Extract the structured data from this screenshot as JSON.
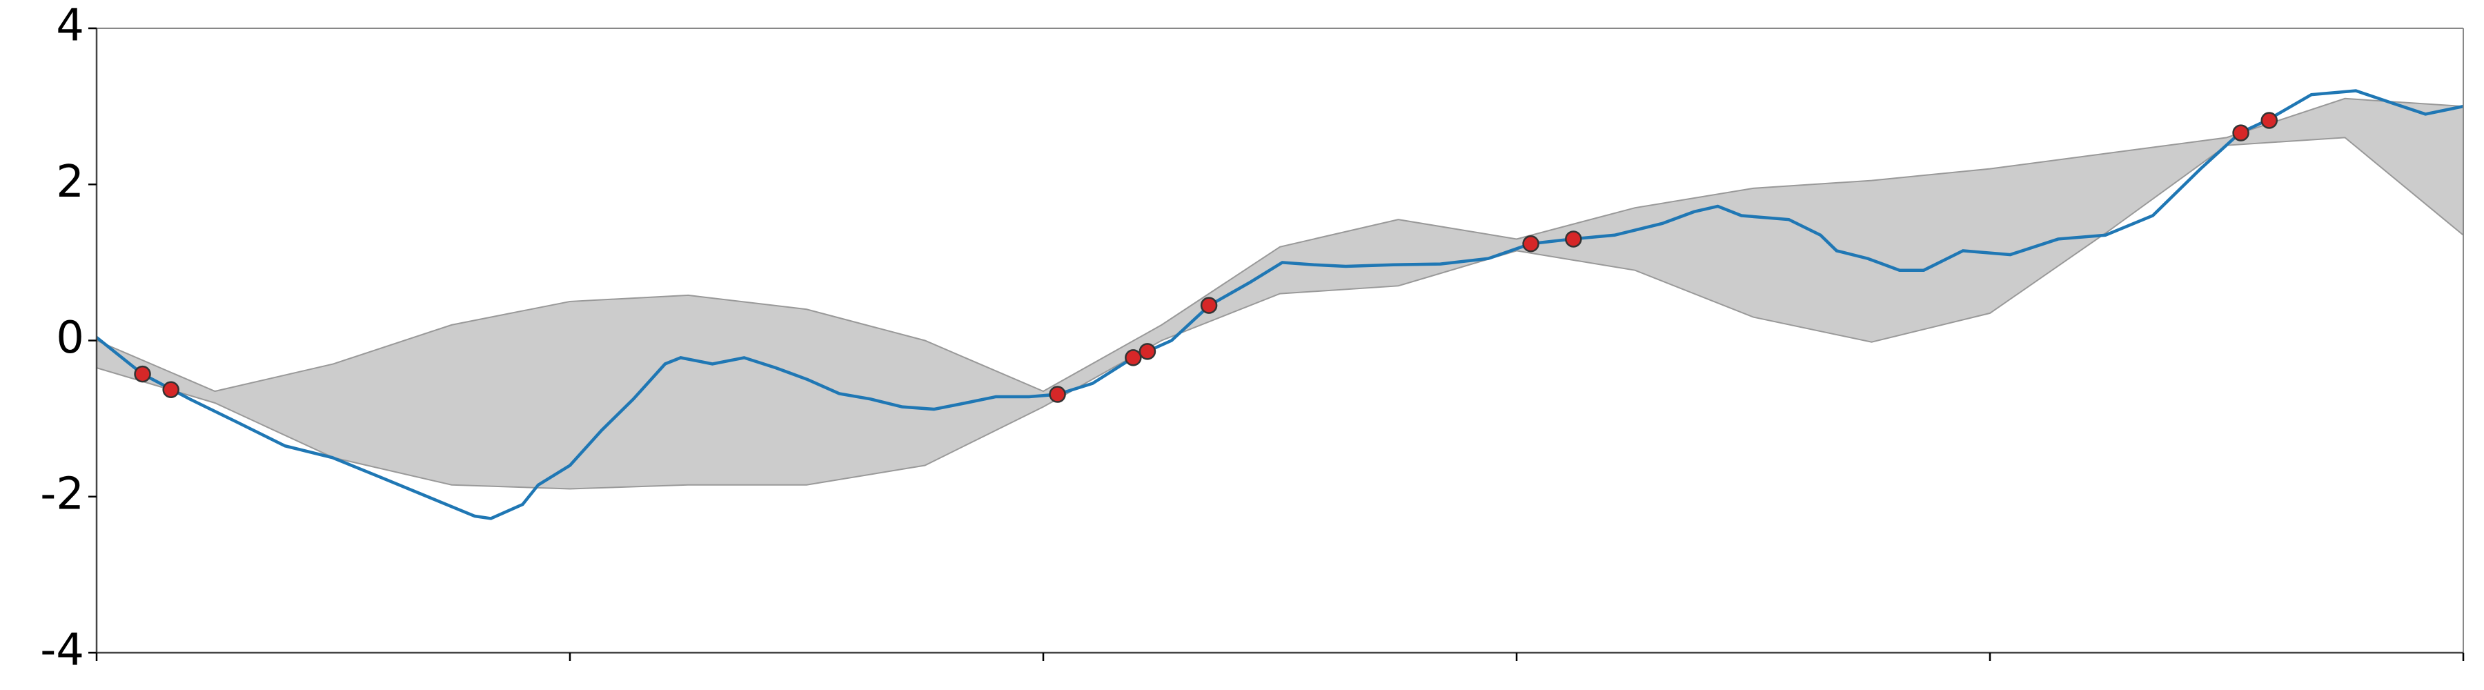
{
  "chart_data": {
    "type": "line",
    "xlim": [
      0,
      5
    ],
    "xticks": [
      0,
      1,
      2,
      3,
      4,
      5
    ],
    "ylim": [
      -4,
      4
    ],
    "yticks": [
      -4,
      -2,
      0,
      2,
      4
    ],
    "band": {
      "color": "#cccccc",
      "x": [
        0,
        0.25,
        0.5,
        0.75,
        1,
        1.25,
        1.5,
        1.75,
        2,
        2.25,
        2.5,
        2.75,
        3,
        3.25,
        3.5,
        3.75,
        4,
        4.25,
        4.5,
        4.75,
        5
      ],
      "upper": [
        0.0,
        -0.65,
        -0.3,
        0.2,
        0.5,
        0.58,
        0.4,
        0.0,
        -0.65,
        0.2,
        1.2,
        1.55,
        1.3,
        1.7,
        1.95,
        2.05,
        2.2,
        2.4,
        2.6,
        3.1,
        3.0
      ],
      "lower": [
        -0.35,
        -0.8,
        -1.5,
        -1.85,
        -1.9,
        -1.85,
        -1.85,
        -1.6,
        -0.85,
        0.0,
        0.6,
        0.7,
        1.15,
        0.9,
        0.3,
        -0.02,
        0.35,
        1.4,
        2.5,
        2.6,
        1.35
      ]
    },
    "x": [
      0,
      0.097,
      0.197,
      0.298,
      0.398,
      0.498,
      0.599,
      0.699,
      0.799,
      0.833,
      0.9,
      0.933,
      1.0,
      1.067,
      1.134,
      1.201,
      1.234,
      1.301,
      1.368,
      1.435,
      1.502,
      1.569,
      1.635,
      1.702,
      1.769,
      1.836,
      1.9,
      1.97,
      2.03,
      2.104,
      2.19,
      2.271,
      2.351,
      2.438,
      2.505,
      2.572,
      2.639,
      2.739,
      2.839,
      2.94,
      3.03,
      3.117,
      3.207,
      3.308,
      3.375,
      3.425,
      3.475,
      3.575,
      3.642,
      3.676,
      3.742,
      3.809,
      3.86,
      3.943,
      4.043,
      4.144,
      4.244,
      4.344,
      4.445,
      4.528,
      4.585,
      4.679,
      4.773,
      4.846,
      4.92,
      5.0
    ],
    "series": [
      {
        "color": "#1f77b4",
        "values": [
          0.04,
          -0.43,
          -0.75,
          -1.05,
          -1.35,
          -1.5,
          -1.75,
          -2.0,
          -2.25,
          -2.28,
          -2.1,
          -1.85,
          -1.6,
          -1.15,
          -0.75,
          -0.3,
          -0.22,
          -0.3,
          -0.22,
          -0.35,
          -0.5,
          -0.68,
          -0.75,
          -0.85,
          -0.88,
          -0.8,
          -0.72,
          -0.72,
          -0.69,
          -0.55,
          -0.22,
          0.0,
          0.45,
          0.75,
          1.0,
          0.97,
          0.95,
          0.97,
          0.98,
          1.05,
          1.24,
          1.3,
          1.35,
          1.5,
          1.65,
          1.72,
          1.6,
          1.55,
          1.35,
          1.15,
          1.05,
          0.9,
          0.9,
          1.15,
          1.1,
          1.3,
          1.35,
          1.6,
          2.2,
          2.66,
          2.82,
          3.15,
          3.2,
          3.05,
          2.9,
          3.0
        ]
      }
    ],
    "points": {
      "color": "#d62728",
      "x": [
        0.097,
        0.157,
        2.03,
        2.19,
        2.22,
        2.35,
        3.03,
        3.12,
        4.53,
        4.59
      ],
      "y": [
        -0.43,
        -0.63,
        -0.69,
        -0.22,
        -0.14,
        0.45,
        1.24,
        1.3,
        2.66,
        2.82
      ]
    }
  }
}
